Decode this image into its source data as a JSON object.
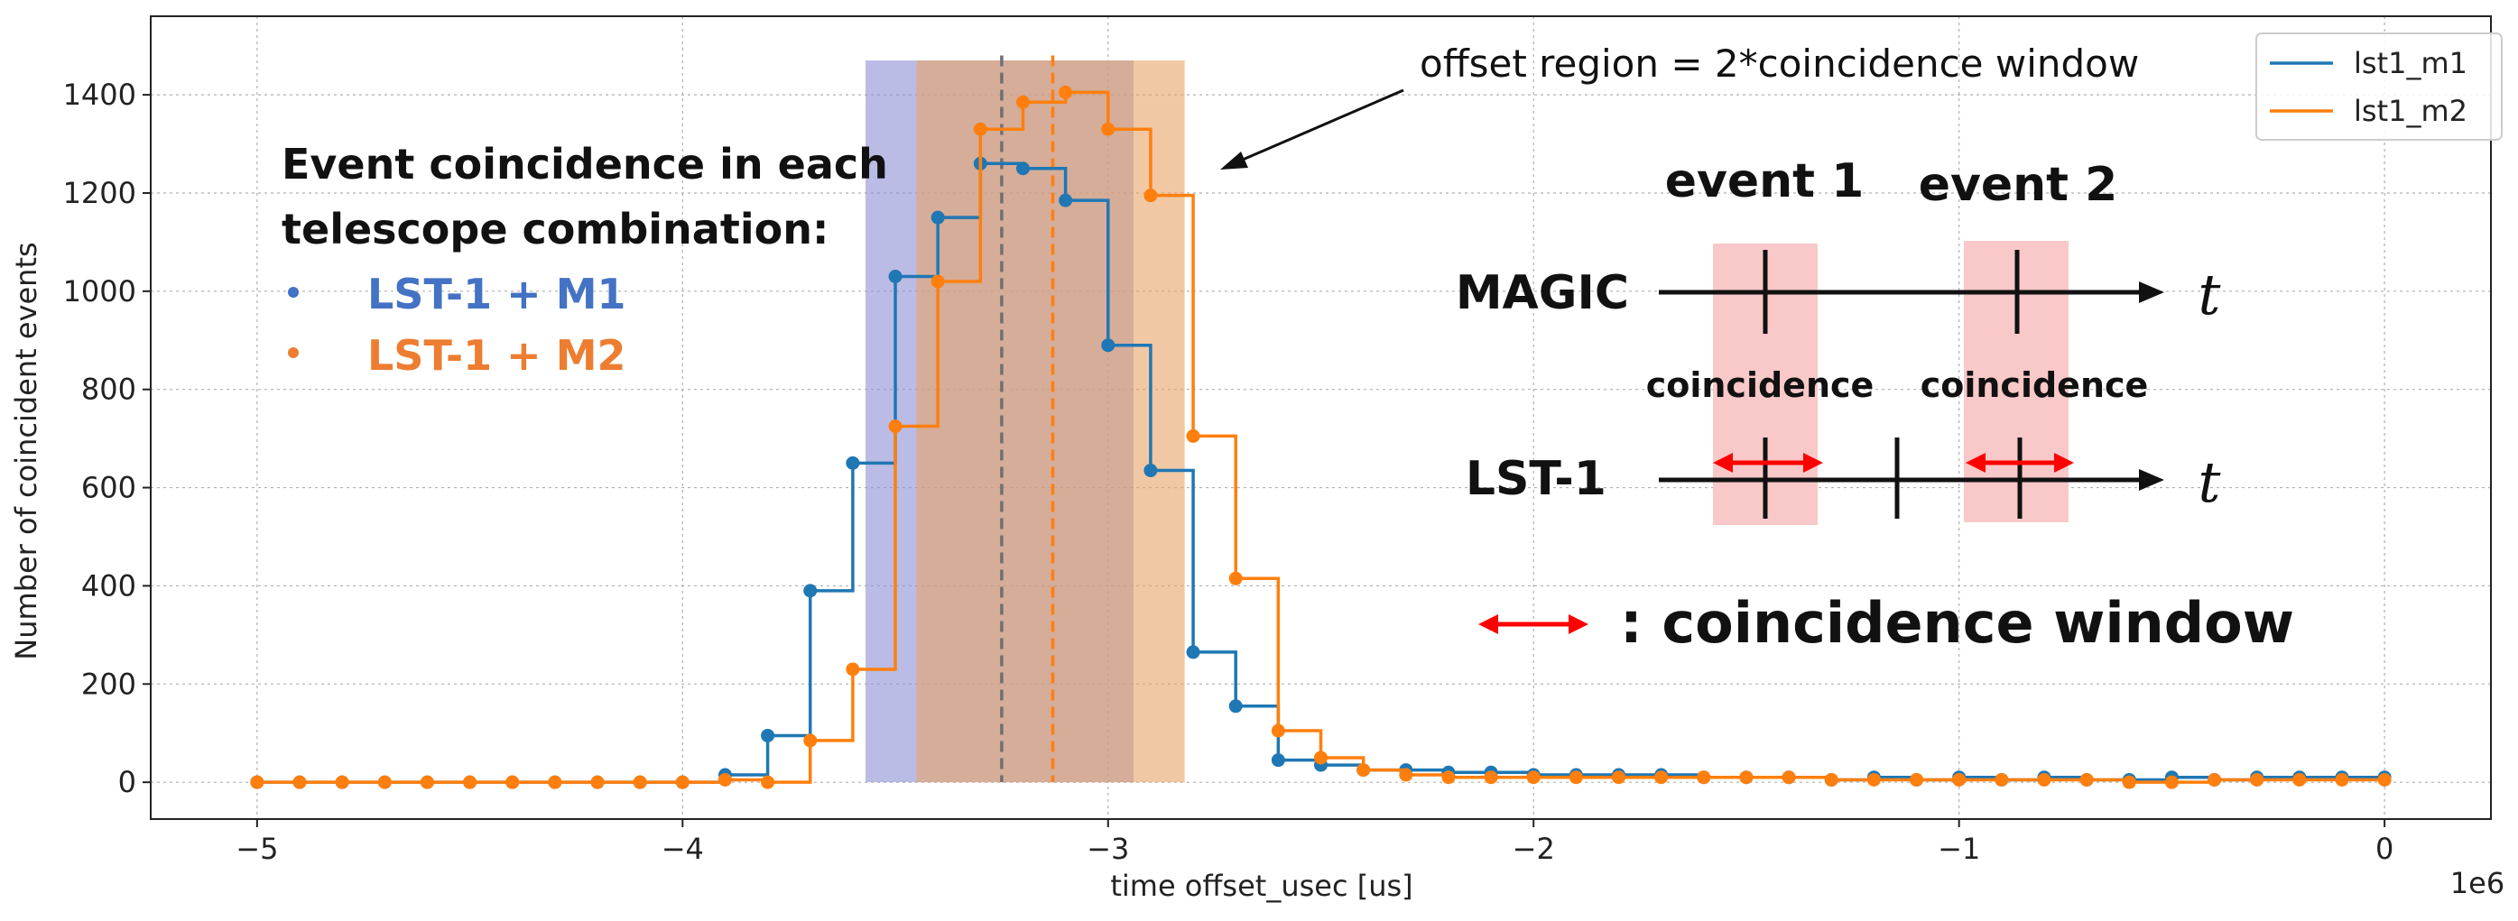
{
  "chart_data": {
    "type": "line",
    "step": "post",
    "xlabel": "time offset_usec [us]",
    "ylabel": "Number of coincident events",
    "x_scale_label": "1e6",
    "xlim": [
      -5.25,
      0.25
    ],
    "ylim": [
      -75,
      1560
    ],
    "x_ticks": [
      -5,
      -4,
      -3,
      -2,
      -1,
      0
    ],
    "x_tick_labels": [
      "−5",
      "−4",
      "−3",
      "−2",
      "−1",
      "0"
    ],
    "y_ticks": [
      0,
      200,
      400,
      600,
      800,
      1000,
      1200,
      1400
    ],
    "grid": true,
    "legend_position": "top-right",
    "x": [
      -5.0,
      -4.9,
      -4.8,
      -4.7,
      -4.6,
      -4.5,
      -4.4,
      -4.3,
      -4.2,
      -4.1,
      -4.0,
      -3.9,
      -3.8,
      -3.7,
      -3.6,
      -3.5,
      -3.4,
      -3.3,
      -3.2,
      -3.1,
      -3.0,
      -2.9,
      -2.8,
      -2.7,
      -2.6,
      -2.5,
      -2.4,
      -2.3,
      -2.2,
      -2.1,
      -2.0,
      -1.9,
      -1.8,
      -1.7,
      -1.6,
      -1.5,
      -1.4,
      -1.3,
      -1.2,
      -1.1,
      -1.0,
      -0.9,
      -0.8,
      -0.7,
      -0.6,
      -0.5,
      -0.4,
      -0.3,
      -0.2,
      -0.1,
      0.0
    ],
    "series": [
      {
        "name": "lst1_m1",
        "color": "#1f77b4",
        "values": [
          0,
          0,
          0,
          0,
          0,
          0,
          0,
          0,
          0,
          0,
          0,
          15,
          95,
          390,
          650,
          1030,
          1150,
          1260,
          1250,
          1185,
          890,
          635,
          265,
          155,
          45,
          35,
          25,
          25,
          20,
          20,
          15,
          15,
          15,
          15,
          10,
          10,
          10,
          5,
          10,
          5,
          10,
          5,
          10,
          5,
          5,
          10,
          5,
          10,
          10,
          10,
          10
        ],
        "mean_line_x": -3.25
      },
      {
        "name": "lst1_m2",
        "color": "#ff7f0e",
        "values": [
          0,
          0,
          0,
          0,
          0,
          0,
          0,
          0,
          0,
          0,
          0,
          5,
          0,
          85,
          230,
          725,
          1020,
          1330,
          1385,
          1405,
          1330,
          1195,
          705,
          415,
          105,
          50,
          25,
          15,
          10,
          10,
          10,
          10,
          10,
          10,
          10,
          10,
          10,
          5,
          5,
          5,
          5,
          5,
          5,
          5,
          0,
          0,
          5,
          5,
          5,
          5,
          5
        ],
        "mean_line_x": -3.13
      }
    ],
    "shaded_regions": [
      {
        "x0": -3.57,
        "x1": -2.94,
        "color": "#8c8fd6",
        "opacity": 0.6
      },
      {
        "x0": -3.45,
        "x1": -2.82,
        "color": "#e8a465",
        "opacity": 0.6
      }
    ],
    "region_top": 1470,
    "mean_line_color_m1": "#707070"
  },
  "annotations": {
    "offset_region": "offset region = 2*coincidence window",
    "combo_heading_line1": "Event coincidence in each",
    "combo_heading_line2": "telescope combination:",
    "bullet": "•",
    "combo_m1": "LST-1 + M1",
    "combo_m2": "LST-1 + M2",
    "combo_m1_color": "#4472c4",
    "combo_m2_color": "#ed7d31"
  },
  "diagram": {
    "event1": "event 1",
    "event2": "event 2",
    "magic": "MAGIC",
    "lst": "LST-1",
    "t": "t",
    "coincidence1": "coincidence",
    "coincidence2": "coincidence",
    "window_label": ": coincidence window",
    "highlight_color": "#f9c8c8",
    "arrow_color": "#ff0000"
  }
}
